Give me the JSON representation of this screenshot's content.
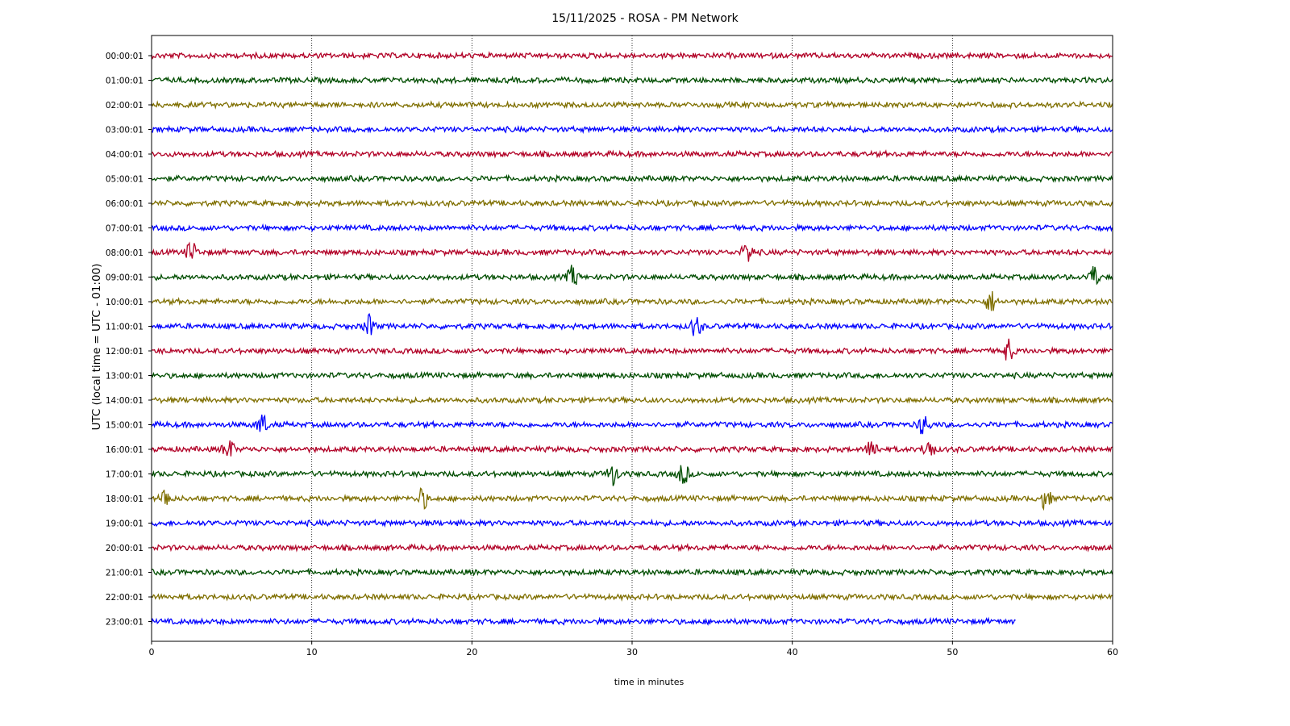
{
  "chart_data": {
    "type": "line",
    "title": "15/11/2025 - ROSA - PM Network",
    "xlabel": "time in minutes",
    "ylabel": "UTC (local time = UTC - 01:00)",
    "xlim": [
      0,
      60
    ],
    "x_ticks": [
      0,
      10,
      20,
      30,
      40,
      50,
      60
    ],
    "grid": "vertical dotted at x ticks",
    "colors": [
      "#b10026",
      "#004d00",
      "#7f6f00",
      "#0000ff"
    ],
    "series": [
      {
        "name": "00:00:01",
        "x_end": 60,
        "events": []
      },
      {
        "name": "01:00:01",
        "x_end": 60,
        "events": []
      },
      {
        "name": "02:00:01",
        "x_end": 60,
        "events": []
      },
      {
        "name": "03:00:01",
        "x_end": 60,
        "events": []
      },
      {
        "name": "04:00:01",
        "x_end": 60,
        "events": []
      },
      {
        "name": "05:00:01",
        "x_end": 60,
        "events": []
      },
      {
        "name": "06:00:01",
        "x_end": 60,
        "events": []
      },
      {
        "name": "07:00:01",
        "x_end": 60,
        "events": []
      },
      {
        "name": "08:00:01",
        "x_end": 60,
        "events": [
          2.5,
          37.2
        ]
      },
      {
        "name": "09:00:01",
        "x_end": 60,
        "events": [
          26.3,
          58.8
        ]
      },
      {
        "name": "10:00:01",
        "x_end": 60,
        "events": [
          52.4
        ]
      },
      {
        "name": "11:00:01",
        "x_end": 60,
        "events": [
          13.6,
          34.0
        ]
      },
      {
        "name": "12:00:01",
        "x_end": 60,
        "events": [
          53.5
        ]
      },
      {
        "name": "13:00:01",
        "x_end": 60,
        "events": []
      },
      {
        "name": "14:00:01",
        "x_end": 60,
        "events": []
      },
      {
        "name": "15:00:01",
        "x_end": 60,
        "events": [
          6.9,
          48.2
        ]
      },
      {
        "name": "16:00:01",
        "x_end": 60,
        "events": [
          4.8,
          45.0,
          48.5
        ]
      },
      {
        "name": "17:00:01",
        "x_end": 60,
        "events": [
          28.8,
          33.2
        ]
      },
      {
        "name": "18:00:01",
        "x_end": 60,
        "events": [
          0.9,
          16.9,
          55.8
        ]
      },
      {
        "name": "19:00:01",
        "x_end": 60,
        "events": []
      },
      {
        "name": "20:00:01",
        "x_end": 60,
        "events": []
      },
      {
        "name": "21:00:01",
        "x_end": 60,
        "events": []
      },
      {
        "name": "22:00:01",
        "x_end": 60,
        "events": []
      },
      {
        "name": "23:00:01",
        "x_end": 54,
        "events": []
      }
    ]
  }
}
